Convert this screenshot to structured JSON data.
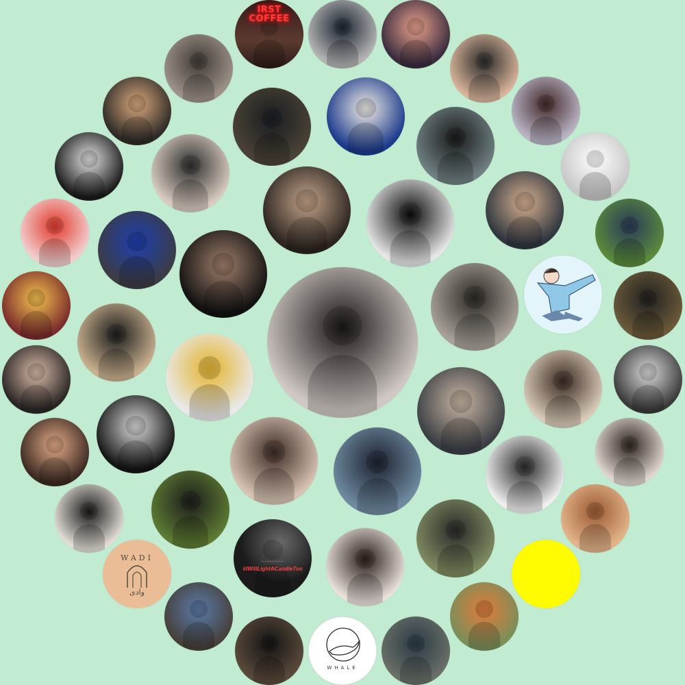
{
  "avatars": [
    {
      "id": "neon-coffee",
      "type": "neon",
      "name": "avatar-neon-coffee",
      "color": "#3a1818",
      "accent": "#ff2b2b",
      "text": [
        "IRST",
        "COFFEE"
      ]
    },
    {
      "id": "a2",
      "name": "avatar-person-top-blur",
      "color": "#b4b4b4",
      "accent": "#1b2430"
    },
    {
      "id": "a3",
      "name": "avatar-sunset-profile",
      "color": "#3a2c3f",
      "accent": "#e8a08a"
    },
    {
      "id": "a4",
      "name": "avatar-woman-plaid",
      "color": "#d8b49a",
      "accent": "#2a2a2a"
    },
    {
      "id": "a5",
      "name": "avatar-city-street",
      "color": "#9e9288",
      "accent": "#3f3a36"
    },
    {
      "id": "a6",
      "name": "avatar-man-glasses-hoodie",
      "color": "#2e2a28",
      "accent": "#d9a97c"
    },
    {
      "id": "a7",
      "name": "avatar-man-sunglasses",
      "color": "#4a4236",
      "accent": "#1a1d22"
    },
    {
      "id": "a8",
      "name": "avatar-blue-shirt-necklace",
      "color": "#1c3a8c",
      "accent": "#f1ede5"
    },
    {
      "id": "a9",
      "name": "avatar-beach-walker",
      "color": "#b9b5c5",
      "accent": "#44282a"
    },
    {
      "id": "a10",
      "name": "avatar-man-beach-sunglasses",
      "color": "#6f7f82",
      "accent": "#1a1a1a"
    },
    {
      "id": "a11",
      "name": "avatar-woman-white-hat",
      "color": "#c7c7c7",
      "accent": "#ffffff"
    },
    {
      "id": "a12",
      "name": "avatar-woman-bw-half",
      "color": "#1c1c1c",
      "accent": "#e0e0e0"
    },
    {
      "id": "a13",
      "name": "avatar-woman-blonde",
      "color": "#d8cbbf",
      "accent": "#2e2e2e"
    },
    {
      "id": "a14",
      "name": "avatar-woman-dark-portrait",
      "color": "#2b2420",
      "accent": "#c4a48a"
    },
    {
      "id": "a15",
      "name": "avatar-man-back-silhouette",
      "color": "#e6e6e6",
      "accent": "#0b0b0b"
    },
    {
      "id": "a16",
      "name": "avatar-man-dark-bg",
      "color": "#2f3640",
      "accent": "#d7b08f"
    },
    {
      "id": "a17",
      "name": "avatar-redhead-woman",
      "color": "#f1cfcf",
      "accent": "#e23a2d"
    },
    {
      "id": "a18",
      "name": "avatar-man-blue-jacket",
      "color": "#3c3c44",
      "accent": "#1e3fb0"
    },
    {
      "id": "a19",
      "name": "avatar-man-glasses-dark",
      "color": "#121212",
      "accent": "#a07f6b"
    },
    {
      "id": "a20",
      "name": "avatar-man-park-bench",
      "color": "#5a8a3c",
      "accent": "#2a3a58"
    },
    {
      "id": "a21",
      "name": "avatar-festival-lights",
      "color": "#7a2b2b",
      "accent": "#f2c14e"
    },
    {
      "id": "a22",
      "name": "avatar-center-hands-hair",
      "color": "#cfc8c4",
      "accent": "#1b1616"
    },
    {
      "id": "a23",
      "name": "avatar-man-standing-door",
      "color": "#a8a29a",
      "accent": "#2c2824"
    },
    {
      "id": "a24",
      "name": "avatar-cartoon-girl",
      "type": "cartoon",
      "color": "#e3f4fb",
      "accent": "#8fc7e6"
    },
    {
      "id": "a25",
      "name": "avatar-man-mountain-view",
      "color": "#6b5a3a",
      "accent": "#202020"
    },
    {
      "id": "a26",
      "name": "avatar-man-cap",
      "color": "#c8b08e",
      "accent": "#1c1c1c"
    },
    {
      "id": "a27",
      "name": "avatar-woman-dark-hair",
      "color": "#2a2626",
      "accent": "#d8b9a6"
    },
    {
      "id": "a28",
      "name": "avatar-girl-yellow-top",
      "color": "#e9e9e9",
      "accent": "#e4b42c"
    },
    {
      "id": "a29",
      "name": "avatar-man-looking-up",
      "color": "#3b3f44",
      "accent": "#c9b5a3"
    },
    {
      "id": "a30",
      "name": "avatar-woman-short-hair",
      "color": "#d9cbb9",
      "accent": "#3b2a22"
    },
    {
      "id": "a31",
      "name": "avatar-woman-bw-hand",
      "color": "#3a3a3a",
      "accent": "#d8d8d8"
    },
    {
      "id": "a32",
      "name": "avatar-woman-blue-eyes",
      "color": "#3b2a22",
      "accent": "#e2a987"
    },
    {
      "id": "a33",
      "name": "avatar-man-tuxedo",
      "color": "#151515",
      "accent": "#d9d9d9"
    },
    {
      "id": "a34",
      "name": "avatar-woman-soft-light",
      "color": "#d7c3b3",
      "accent": "#3d2a24"
    },
    {
      "id": "a35",
      "name": "avatar-man-beard-sunglasses",
      "color": "#6f8aa0",
      "accent": "#1d2230"
    },
    {
      "id": "a36",
      "name": "avatar-man-hand-face",
      "color": "#e0d6d0",
      "accent": "#2f2520"
    },
    {
      "id": "a37",
      "name": "avatar-woman-round-glasses",
      "color": "#efefef",
      "accent": "#2a2a2a"
    },
    {
      "id": "a38",
      "name": "avatar-man-mirror-selfie",
      "color": "#e2ddd6",
      "accent": "#1a1a1a"
    },
    {
      "id": "a39",
      "name": "avatar-man-beard-garden",
      "color": "#5d7a32",
      "accent": "#1d1d1d"
    },
    {
      "id": "a40",
      "name": "avatar-hashtag-metoo",
      "type": "hashtag",
      "color": "#1b1b1b",
      "accent": "#ff3b3b",
      "text": "#IWillLightACandleToo",
      "subtext": "·ـ‌ ـ ـ ـ ـ ـ ـ ـ ـ ـ ـ ـ ـ ـ ـ"
    },
    {
      "id": "a41",
      "name": "avatar-woman-red-lips",
      "color": "#e9e1dc",
      "accent": "#2a1e1a"
    },
    {
      "id": "a42",
      "name": "avatar-man-curly-smile",
      "color": "#7f8a60",
      "accent": "#2a2a2a"
    },
    {
      "id": "a43",
      "name": "avatar-woman-blonde-curls",
      "color": "#e3b48a",
      "accent": "#9a5a32"
    },
    {
      "id": "a44",
      "name": "avatar-yellow-circle",
      "type": "plain",
      "color": "#fffb00",
      "accent": "#fffb00"
    },
    {
      "id": "a45",
      "name": "avatar-wadi-logo",
      "type": "wadi",
      "color": "#ebbd97",
      "accent": "#4b4b3c",
      "title": "WADI",
      "arabic": "وادی"
    },
    {
      "id": "a46",
      "name": "avatar-man-denim-jacket",
      "color": "#46403a",
      "accent": "#5a7aa8"
    },
    {
      "id": "a47",
      "name": "avatar-woman-mirror-selfie",
      "color": "#5a4a3c",
      "accent": "#141414"
    },
    {
      "id": "a48",
      "name": "avatar-whale-logo",
      "type": "whale",
      "color": "#ffffff",
      "accent": "#2a2a2a",
      "title": "WHALE"
    },
    {
      "id": "a49",
      "name": "avatar-man-sitting-outdoor",
      "color": "#6a6f68",
      "accent": "#2a3a44"
    },
    {
      "id": "a50",
      "name": "avatar-man-orange-scarf",
      "color": "#7a8f5a",
      "accent": "#e07a3a"
    },
    {
      "id": "a51",
      "name": "avatar-man-leaning-mirror",
      "color": "#9aa0a6",
      "accent": "#2f2f2f"
    }
  ]
}
